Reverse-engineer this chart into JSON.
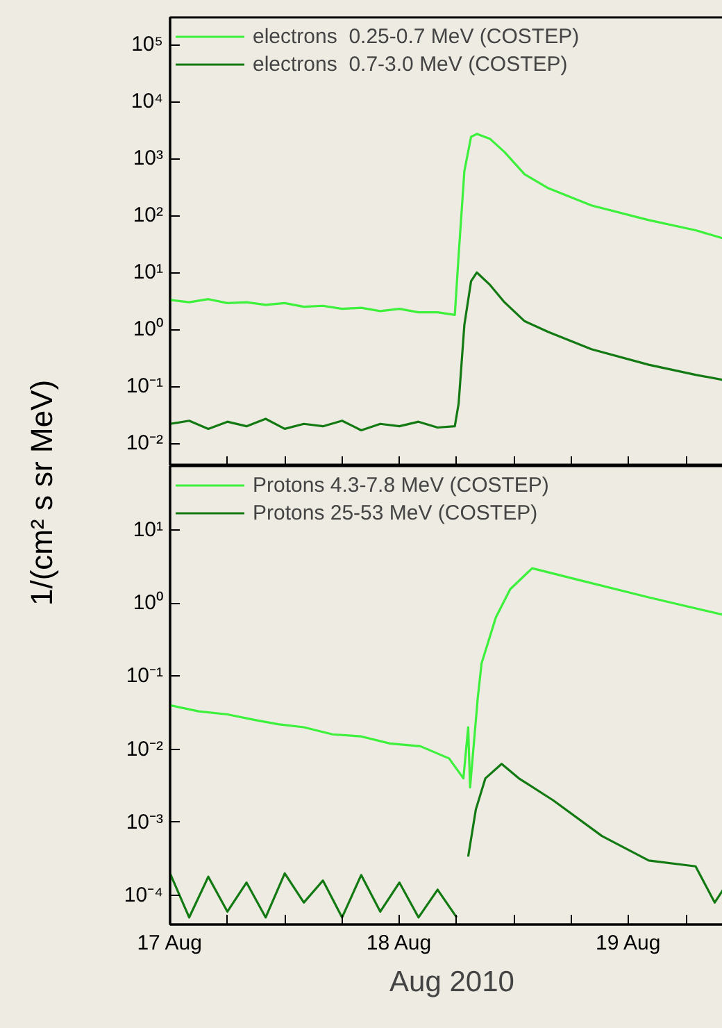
{
  "chart_data": [
    {
      "type": "line",
      "ylabel": "1/(cm² s sr MeV)",
      "log": "y",
      "legend": "top left",
      "grid": false,
      "tick_labels": "y",
      "x": [
        "2010-08-17T00:00",
        "2010-08-17T02:00",
        "2010-08-17T04:00",
        "2010-08-17T06:00",
        "2010-08-17T08:00",
        "2010-08-17T10:00",
        "2010-08-17T12:00",
        "2010-08-17T14:00",
        "2010-08-17T16:00",
        "2010-08-17T18:00",
        "2010-08-17T20:00",
        "2010-08-17T22:00",
        "2010-08-18T00:00",
        "2010-08-18T02:00",
        "2010-08-18T04:00",
        "2010-08-18T05:48",
        "2010-08-18T06:12",
        "2010-08-18T06:48",
        "2010-08-18T07:30",
        "2010-08-18T08:06",
        "2010-08-18T09:30",
        "2010-08-18T11:00",
        "2010-08-18T13:06",
        "2010-08-18T15:36",
        "2010-08-18T20:06",
        "2010-08-19T02:06",
        "2010-08-19T07:00",
        "2010-08-19T11:00"
      ],
      "series": [
        {
          "name": "electrons  0.25-0.7 MeV (COSTEP)",
          "color": "#3cf03c",
          "values": [
            3.3,
            3.0,
            3.4,
            2.9,
            3.0,
            2.7,
            2.9,
            2.5,
            2.6,
            2.3,
            2.4,
            2.1,
            2.3,
            2.0,
            2.0,
            1.8,
            20,
            600,
            2400,
            2700,
            2200,
            1300,
            530,
            300,
            150,
            83,
            55,
            35
          ]
        },
        {
          "name": "electrons  0.7-3.0 MeV (COSTEP)",
          "color": "#137a13",
          "values": [
            0.022,
            0.025,
            0.018,
            0.024,
            0.02,
            0.027,
            0.018,
            0.022,
            0.02,
            0.025,
            0.017,
            0.022,
            0.02,
            0.024,
            0.019,
            0.02,
            0.05,
            1.2,
            7,
            10,
            6,
            3,
            1.4,
            0.9,
            0.45,
            0.24,
            0.16,
            0.12
          ]
        }
      ],
      "xlim": [
        "2010-08-17T00:00",
        "2010-08-19T11:00"
      ],
      "xticks": [
        {
          "value": "2010-08-17T00:00",
          "label": null
        },
        {
          "value": "2010-08-17T06:00",
          "label": null
        },
        {
          "value": "2010-08-17T12:00",
          "label": null
        },
        {
          "value": "2010-08-17T18:00",
          "label": null
        },
        {
          "value": "2010-08-18T00:00",
          "label": null
        },
        {
          "value": "2010-08-18T06:00",
          "label": null
        },
        {
          "value": "2010-08-18T12:00",
          "label": null
        },
        {
          "value": "2010-08-18T18:00",
          "label": null
        },
        {
          "value": "2010-08-19T00:00",
          "label": null
        },
        {
          "value": "2010-08-19T06:00",
          "label": null
        }
      ],
      "ylim": [
        0.004,
        300000
      ],
      "yticks": [
        {
          "value": 0.01,
          "label": "10⁻²"
        },
        {
          "value": 0.1,
          "label": "10⁻¹"
        },
        {
          "value": 1,
          "label": "10⁰"
        },
        {
          "value": 10,
          "label": "10¹"
        },
        {
          "value": 100,
          "label": "10²"
        },
        {
          "value": 1000,
          "label": "10³"
        },
        {
          "value": 10000,
          "label": "10⁴"
        },
        {
          "value": 100000,
          "label": "10⁵"
        }
      ]
    },
    {
      "type": "line",
      "xlabel": "Aug 2010",
      "log": "y",
      "legend": "top left",
      "grid": false,
      "series": [
        {
          "name": "Protons 4.3-7.8 MeV (COSTEP)",
          "color": "#3cf03c",
          "x": [
            "2010-08-17T00:00",
            "2010-08-17T03:00",
            "2010-08-17T06:00",
            "2010-08-17T09:00",
            "2010-08-17T11:18",
            "2010-08-17T14:00",
            "2010-08-17T17:00",
            "2010-08-17T20:00",
            "2010-08-17T23:00",
            "2010-08-18T02:12",
            "2010-08-18T05:12",
            "2010-08-18T06:42",
            "2010-08-18T07:12",
            "2010-08-18T07:24",
            "2010-08-18T08:12",
            "2010-08-18T08:36",
            "2010-08-18T10:06",
            "2010-08-18T11:36",
            "2010-08-18T13:54",
            "2010-08-18T18:36",
            "2010-08-19T02:06",
            "2010-08-19T11:00"
          ],
          "values": [
            0.04,
            0.033,
            0.03,
            0.025,
            0.022,
            0.02,
            0.016,
            0.015,
            0.012,
            0.011,
            0.0075,
            0.004,
            0.02,
            0.003,
            0.05,
            0.15,
            0.64,
            1.55,
            3.0,
            2.1,
            1.2,
            0.64
          ]
        },
        {
          "name": "Protons 25-53 MeV (COSTEP)",
          "color": "#137a13",
          "x": [
            "2010-08-17T00:00",
            "2010-08-17T02:00",
            "2010-08-17T04:00",
            "2010-08-17T06:00",
            "2010-08-17T08:00",
            "2010-08-17T10:00",
            "2010-08-17T12:00",
            "2010-08-17T14:00",
            "2010-08-17T16:00",
            "2010-08-17T18:00",
            "2010-08-17T20:00",
            "2010-08-17T22:00",
            "2010-08-18T00:00",
            "2010-08-18T02:00",
            "2010-08-18T04:00",
            "2010-08-18T06:00",
            "2010-08-18T06:30",
            "2010-08-18T07:12",
            "2010-08-18T08:00",
            "2010-08-18T09:00",
            "2010-08-18T10:42",
            "2010-08-18T12:30",
            "2010-08-18T16:06",
            "2010-08-18T21:12",
            "2010-08-19T02:06",
            "2010-08-19T07:00",
            "2010-08-19T09:00",
            "2010-08-19T11:00"
          ],
          "values": [
            0.0002,
            5e-05,
            0.00018,
            6e-05,
            0.00015,
            5e-05,
            0.0002,
            8e-05,
            0.00016,
            5e-05,
            0.00019,
            6e-05,
            0.00015,
            5e-05,
            0.00012,
            5e-05,
            null,
            0.00034,
            0.0015,
            0.004,
            0.0063,
            0.004,
            0.002,
            0.00065,
            0.0003,
            0.00025,
            8e-05,
            0.0002
          ]
        }
      ],
      "xlim": [
        "2010-08-17T00:00",
        "2010-08-19T11:00"
      ],
      "xticks": [
        {
          "value": "2010-08-17T00:00",
          "label": "17 Aug"
        },
        {
          "value": "2010-08-17T06:00",
          "label": null
        },
        {
          "value": "2010-08-17T12:00",
          "label": null
        },
        {
          "value": "2010-08-17T18:00",
          "label": null
        },
        {
          "value": "2010-08-18T00:00",
          "label": "18 Aug"
        },
        {
          "value": "2010-08-18T06:00",
          "label": null
        },
        {
          "value": "2010-08-18T12:00",
          "label": null
        },
        {
          "value": "2010-08-18T18:00",
          "label": null
        },
        {
          "value": "2010-08-19T00:00",
          "label": "19 Aug"
        },
        {
          "value": "2010-08-19T06:00",
          "label": null
        }
      ],
      "ylim": [
        4e-05,
        75
      ],
      "yticks": [
        {
          "value": 0.0001,
          "label": "10⁻⁴"
        },
        {
          "value": 0.001,
          "label": "10⁻³"
        },
        {
          "value": 0.01,
          "label": "10⁻²"
        },
        {
          "value": 0.1,
          "label": "10⁻¹"
        },
        {
          "value": 1,
          "label": "10⁰"
        },
        {
          "value": 10,
          "label": "10¹"
        }
      ]
    }
  ]
}
